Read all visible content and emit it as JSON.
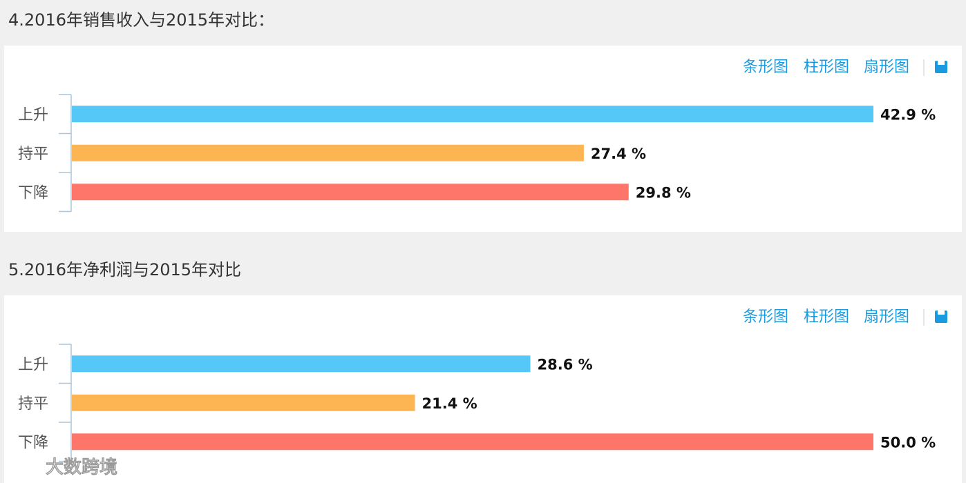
{
  "toolbar": [
    "条形图",
    "柱形图",
    "扇形图"
  ],
  "watermark": "大数跨境",
  "chart_data": [
    {
      "type": "bar",
      "title": "4.2016年销售收入与2015年对比：",
      "categories": [
        "上升",
        "持平",
        "下降"
      ],
      "values": [
        42.9,
        27.4,
        29.8
      ],
      "value_labels": [
        "42.9 %",
        "27.4 %",
        "29.8 %"
      ],
      "colors": [
        "#56c8f8",
        "#fdb452",
        "#fe766a"
      ]
    },
    {
      "type": "bar",
      "title": "5.2016年净利润与2015年对比",
      "categories": [
        "上升",
        "持平",
        "下降"
      ],
      "values": [
        28.6,
        21.4,
        50.0
      ],
      "value_labels": [
        "28.6 %",
        "21.4 %",
        "50.0 %"
      ],
      "colors": [
        "#56c8f8",
        "#fdb452",
        "#fe766a"
      ]
    }
  ]
}
